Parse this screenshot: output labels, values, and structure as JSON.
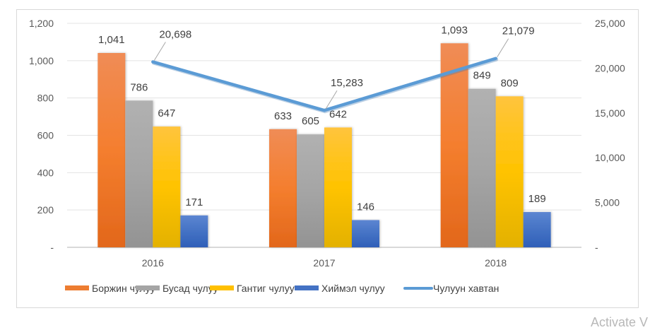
{
  "chart_data": {
    "type": "bar",
    "title": "",
    "categories": [
      "2016",
      "2017",
      "2018"
    ],
    "series": [
      {
        "name": "Боржин чулуу",
        "type": "bar",
        "axis": "left",
        "color": "#ED7D31",
        "values": [
          1041,
          633,
          1093
        ],
        "labels": [
          "1,041",
          "633",
          "1,093"
        ]
      },
      {
        "name": "Бусад чулуу",
        "type": "bar",
        "axis": "left",
        "color": "#A5A5A5",
        "values": [
          786,
          605,
          849
        ],
        "labels": [
          "786",
          "605",
          "849"
        ]
      },
      {
        "name": "Гантиг чулуу",
        "type": "bar",
        "axis": "left",
        "color": "#FFC000",
        "values": [
          647,
          642,
          809
        ],
        "labels": [
          "647",
          "642",
          "809"
        ]
      },
      {
        "name": "Хиймэл чулуу",
        "type": "bar",
        "axis": "left",
        "color": "#4472C4",
        "values": [
          171,
          146,
          189
        ],
        "labels": [
          "171",
          "146",
          "189"
        ]
      },
      {
        "name": "Чулуун хавтан",
        "type": "line",
        "axis": "right",
        "color": "#5B9BD5",
        "values": [
          20698,
          15283,
          21079
        ],
        "labels": [
          "20,698",
          "15,283",
          "21,079"
        ]
      }
    ],
    "y_left": {
      "ylim": [
        0,
        1200
      ],
      "ticks": [
        0,
        200,
        400,
        600,
        800,
        1000,
        1200
      ],
      "tick_labels": [
        "-",
        "200",
        "400",
        "600",
        "800",
        "1,000",
        "1,200"
      ]
    },
    "y_right": {
      "ylim": [
        0,
        25000
      ],
      "ticks": [
        0,
        5000,
        10000,
        15000,
        20000,
        25000
      ],
      "tick_labels": [
        "-",
        "5,000",
        "10,000",
        "15,000",
        "20,000",
        "25,000"
      ]
    },
    "xlabel": "",
    "ylabel": "",
    "grid": true,
    "legend": "bottom"
  },
  "watermark": "Activate V"
}
